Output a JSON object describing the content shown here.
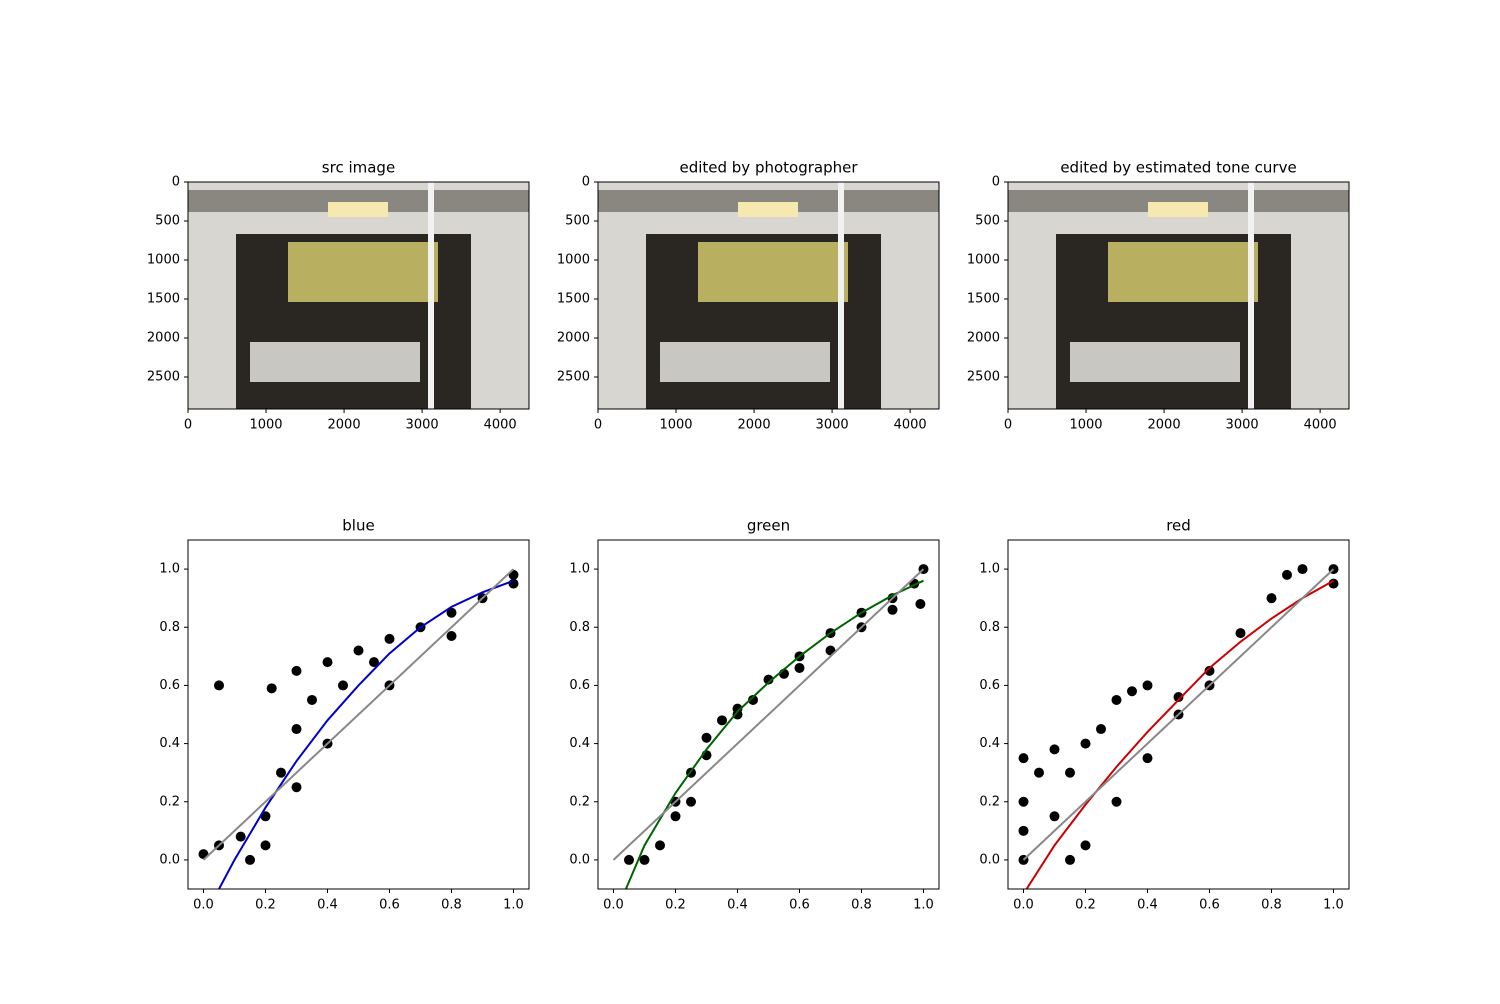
{
  "chart_data": [
    {
      "type": "image",
      "title": "src image",
      "xlim": [
        0,
        4370
      ],
      "ylim": [
        2910,
        0
      ],
      "xticks": [
        0,
        1000,
        2000,
        3000,
        4000
      ],
      "yticks": [
        0,
        500,
        1000,
        1500,
        2000,
        2500
      ]
    },
    {
      "type": "image",
      "title": "edited by photographer",
      "xlim": [
        0,
        4370
      ],
      "ylim": [
        2910,
        0
      ],
      "xticks": [
        0,
        1000,
        2000,
        3000,
        4000
      ],
      "yticks": [
        0,
        500,
        1000,
        1500,
        2000,
        2500
      ]
    },
    {
      "type": "image",
      "title": "edited by estimated tone curve",
      "xlim": [
        0,
        4370
      ],
      "ylim": [
        2910,
        0
      ],
      "xticks": [
        0,
        1000,
        2000,
        3000,
        4000
      ],
      "yticks": [
        0,
        500,
        1000,
        1500,
        2000,
        2500
      ]
    },
    {
      "type": "scatter",
      "title": "blue",
      "xlim": [
        -0.05,
        1.05
      ],
      "ylim": [
        -0.1,
        1.1
      ],
      "xticks": [
        {
          "value": 0,
          "label": "0.0"
        },
        {
          "value": 0.2,
          "label": "0.2"
        },
        {
          "value": 0.4,
          "label": "0.4"
        },
        {
          "value": 0.6,
          "label": "0.6"
        },
        {
          "value": 0.8,
          "label": "0.8"
        },
        {
          "value": 1,
          "label": "1.0"
        }
      ],
      "yticks": [
        {
          "value": 0,
          "label": "0.0"
        },
        {
          "value": 0.2,
          "label": "0.2"
        },
        {
          "value": 0.4,
          "label": "0.4"
        },
        {
          "value": 0.6,
          "label": "0.6"
        },
        {
          "value": 0.8,
          "label": "0.8"
        },
        {
          "value": 1,
          "label": "1.0"
        }
      ],
      "series": [
        {
          "style": "marker",
          "color": "#000000",
          "x": [
            0.05,
            0.22,
            0.3,
            0.0,
            0.05,
            0.15,
            0.2,
            0.25,
            0.3,
            0.35,
            0.4,
            0.5,
            0.6,
            0.7,
            0.8,
            0.9,
            1.0,
            0.8,
            0.6,
            0.4,
            0.3,
            0.2,
            1.0,
            0.45,
            0.55,
            0.12
          ],
          "values": [
            0.6,
            0.59,
            0.65,
            0.02,
            0.05,
            0.0,
            0.15,
            0.3,
            0.45,
            0.55,
            0.68,
            0.72,
            0.76,
            0.8,
            0.85,
            0.9,
            0.98,
            0.77,
            0.6,
            0.4,
            0.25,
            0.05,
            0.95,
            0.6,
            0.68,
            0.08
          ]
        },
        {
          "style": "line",
          "color": "#0000cc",
          "x": [
            0.05,
            0.1,
            0.2,
            0.3,
            0.4,
            0.5,
            0.6,
            0.7,
            0.8,
            0.9,
            1.0
          ],
          "values": [
            -0.1,
            0.0,
            0.18,
            0.34,
            0.48,
            0.6,
            0.71,
            0.8,
            0.87,
            0.92,
            0.96
          ]
        },
        {
          "style": "line",
          "color": "#888888",
          "x": [
            0,
            1
          ],
          "values": [
            0,
            1
          ]
        }
      ]
    },
    {
      "type": "scatter",
      "title": "green",
      "xlim": [
        -0.05,
        1.05
      ],
      "ylim": [
        -0.1,
        1.1
      ],
      "xticks": [
        {
          "value": 0,
          "label": "0.0"
        },
        {
          "value": 0.2,
          "label": "0.2"
        },
        {
          "value": 0.4,
          "label": "0.4"
        },
        {
          "value": 0.6,
          "label": "0.6"
        },
        {
          "value": 0.8,
          "label": "0.8"
        },
        {
          "value": 1,
          "label": "1.0"
        }
      ],
      "yticks": [
        {
          "value": 0,
          "label": "0.0"
        },
        {
          "value": 0.2,
          "label": "0.2"
        },
        {
          "value": 0.4,
          "label": "0.4"
        },
        {
          "value": 0.6,
          "label": "0.6"
        },
        {
          "value": 0.8,
          "label": "0.8"
        },
        {
          "value": 1,
          "label": "1.0"
        }
      ],
      "series": [
        {
          "style": "marker",
          "color": "#000000",
          "x": [
            0.05,
            0.1,
            0.15,
            0.2,
            0.25,
            0.3,
            0.35,
            0.4,
            0.5,
            0.6,
            0.7,
            0.8,
            0.9,
            0.97,
            1.0,
            0.99,
            0.8,
            0.6,
            0.4,
            0.3,
            0.2,
            0.25,
            0.7,
            0.45,
            0.55,
            0.9
          ],
          "values": [
            0.0,
            0.0,
            0.05,
            0.2,
            0.3,
            0.42,
            0.48,
            0.52,
            0.62,
            0.7,
            0.78,
            0.85,
            0.9,
            0.95,
            1.0,
            0.88,
            0.8,
            0.66,
            0.5,
            0.36,
            0.15,
            0.2,
            0.72,
            0.55,
            0.64,
            0.86
          ]
        },
        {
          "style": "line",
          "color": "#006400",
          "x": [
            0.04,
            0.1,
            0.2,
            0.3,
            0.4,
            0.5,
            0.6,
            0.7,
            0.8,
            0.9,
            1.0
          ],
          "values": [
            -0.1,
            0.05,
            0.23,
            0.38,
            0.51,
            0.61,
            0.7,
            0.78,
            0.85,
            0.91,
            0.96
          ]
        },
        {
          "style": "line",
          "color": "#888888",
          "x": [
            0,
            1
          ],
          "values": [
            0,
            1
          ]
        }
      ]
    },
    {
      "type": "scatter",
      "title": "red",
      "xlim": [
        -0.05,
        1.05
      ],
      "ylim": [
        -0.1,
        1.1
      ],
      "xticks": [
        {
          "value": 0,
          "label": "0.0"
        },
        {
          "value": 0.2,
          "label": "0.2"
        },
        {
          "value": 0.4,
          "label": "0.4"
        },
        {
          "value": 0.6,
          "label": "0.6"
        },
        {
          "value": 0.8,
          "label": "0.8"
        },
        {
          "value": 1,
          "label": "1.0"
        }
      ],
      "yticks": [
        {
          "value": 0,
          "label": "0.0"
        },
        {
          "value": 0.2,
          "label": "0.2"
        },
        {
          "value": 0.4,
          "label": "0.4"
        },
        {
          "value": 0.6,
          "label": "0.6"
        },
        {
          "value": 0.8,
          "label": "0.8"
        },
        {
          "value": 1,
          "label": "1.0"
        }
      ],
      "series": [
        {
          "style": "marker",
          "color": "#000000",
          "x": [
            0.0,
            0.0,
            0.0,
            0.0,
            0.05,
            0.1,
            0.15,
            0.2,
            0.25,
            0.3,
            0.35,
            0.4,
            0.1,
            0.15,
            0.2,
            0.3,
            0.4,
            0.5,
            0.6,
            0.7,
            0.8,
            0.85,
            0.9,
            1.0,
            1.0,
            0.6,
            0.5
          ],
          "values": [
            0.35,
            0.2,
            0.1,
            0.0,
            0.3,
            0.38,
            0.3,
            0.4,
            0.45,
            0.55,
            0.58,
            0.6,
            0.15,
            0.0,
            0.05,
            0.2,
            0.35,
            0.5,
            0.65,
            0.78,
            0.9,
            0.98,
            1.0,
            1.0,
            0.95,
            0.6,
            0.56
          ]
        },
        {
          "style": "line",
          "color": "#cc0000",
          "x": [
            0.01,
            0.1,
            0.2,
            0.3,
            0.4,
            0.5,
            0.6,
            0.7,
            0.8,
            0.9,
            1.0
          ],
          "values": [
            -0.1,
            0.05,
            0.19,
            0.32,
            0.44,
            0.55,
            0.66,
            0.75,
            0.83,
            0.9,
            0.96
          ]
        },
        {
          "style": "line",
          "color": "#888888",
          "x": [
            0,
            1
          ],
          "values": [
            0,
            1
          ]
        }
      ]
    }
  ]
}
